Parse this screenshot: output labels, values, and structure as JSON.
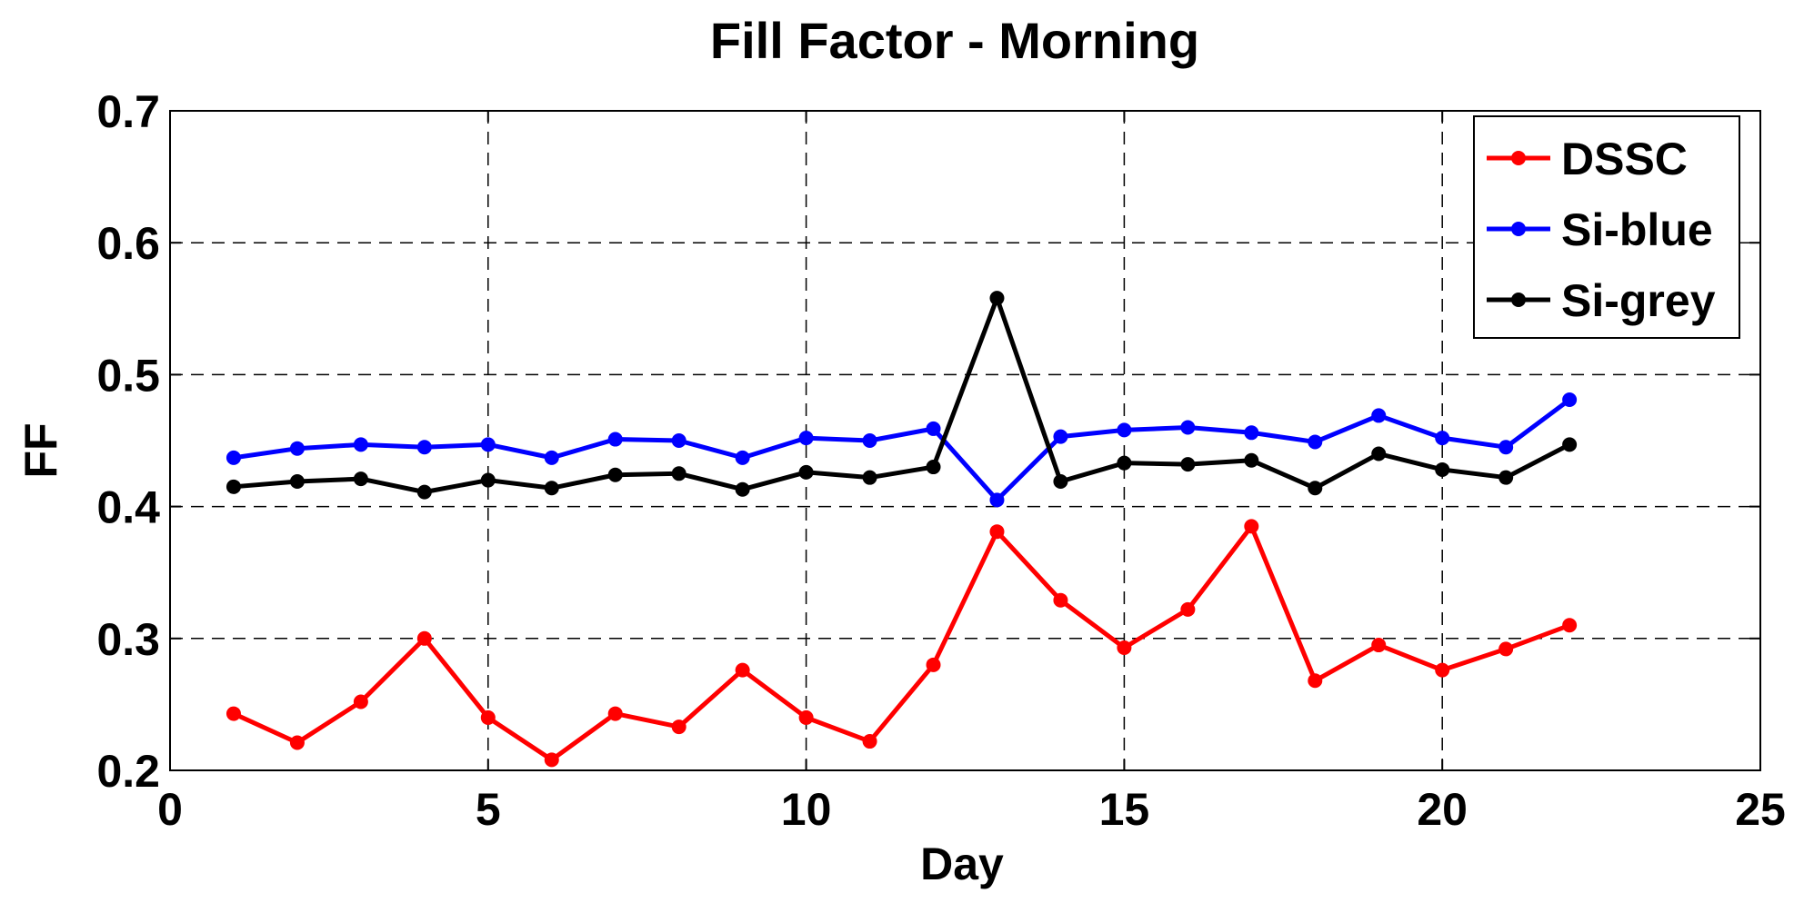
{
  "chart_data": {
    "type": "line",
    "title": "Fill Factor - Morning",
    "xlabel": "Day",
    "ylabel": "FF",
    "xlim": [
      0,
      25
    ],
    "ylim": [
      0.2,
      0.7
    ],
    "xticks": [
      0,
      5,
      10,
      15,
      20,
      25
    ],
    "yticks": [
      0.2,
      0.3,
      0.4,
      0.5,
      0.6,
      0.7
    ],
    "xtick_labels": [
      "0",
      "5",
      "10",
      "15",
      "20",
      "25"
    ],
    "ytick_labels": [
      "0.2",
      "0.3",
      "0.4",
      "0.5",
      "0.6",
      "0.7"
    ],
    "grid": true,
    "legend_position": "top-right",
    "x": [
      1,
      2,
      3,
      4,
      5,
      6,
      7,
      8,
      9,
      10,
      11,
      12,
      13,
      14,
      15,
      16,
      17,
      18,
      19,
      20,
      21,
      22
    ],
    "series": [
      {
        "name": "DSSC",
        "color": "#ff0000",
        "values": [
          0.243,
          0.221,
          0.252,
          0.3,
          0.24,
          0.208,
          0.243,
          0.233,
          0.276,
          0.24,
          0.222,
          0.28,
          0.381,
          0.329,
          0.293,
          0.322,
          0.385,
          0.268,
          0.295,
          0.276,
          0.292,
          0.31
        ]
      },
      {
        "name": "Si-blue",
        "color": "#0000ff",
        "values": [
          0.437,
          0.444,
          0.447,
          0.445,
          0.447,
          0.437,
          0.451,
          0.45,
          0.437,
          0.452,
          0.45,
          0.459,
          0.405,
          0.453,
          0.458,
          0.46,
          0.456,
          0.449,
          0.469,
          0.452,
          0.445,
          0.481
        ]
      },
      {
        "name": "Si-grey",
        "color": "#000000",
        "values": [
          0.415,
          0.419,
          0.421,
          0.411,
          0.42,
          0.414,
          0.424,
          0.425,
          0.413,
          0.426,
          0.422,
          0.43,
          0.558,
          0.419,
          0.433,
          0.432,
          0.435,
          0.414,
          0.44,
          0.428,
          0.422,
          0.447
        ]
      }
    ]
  }
}
